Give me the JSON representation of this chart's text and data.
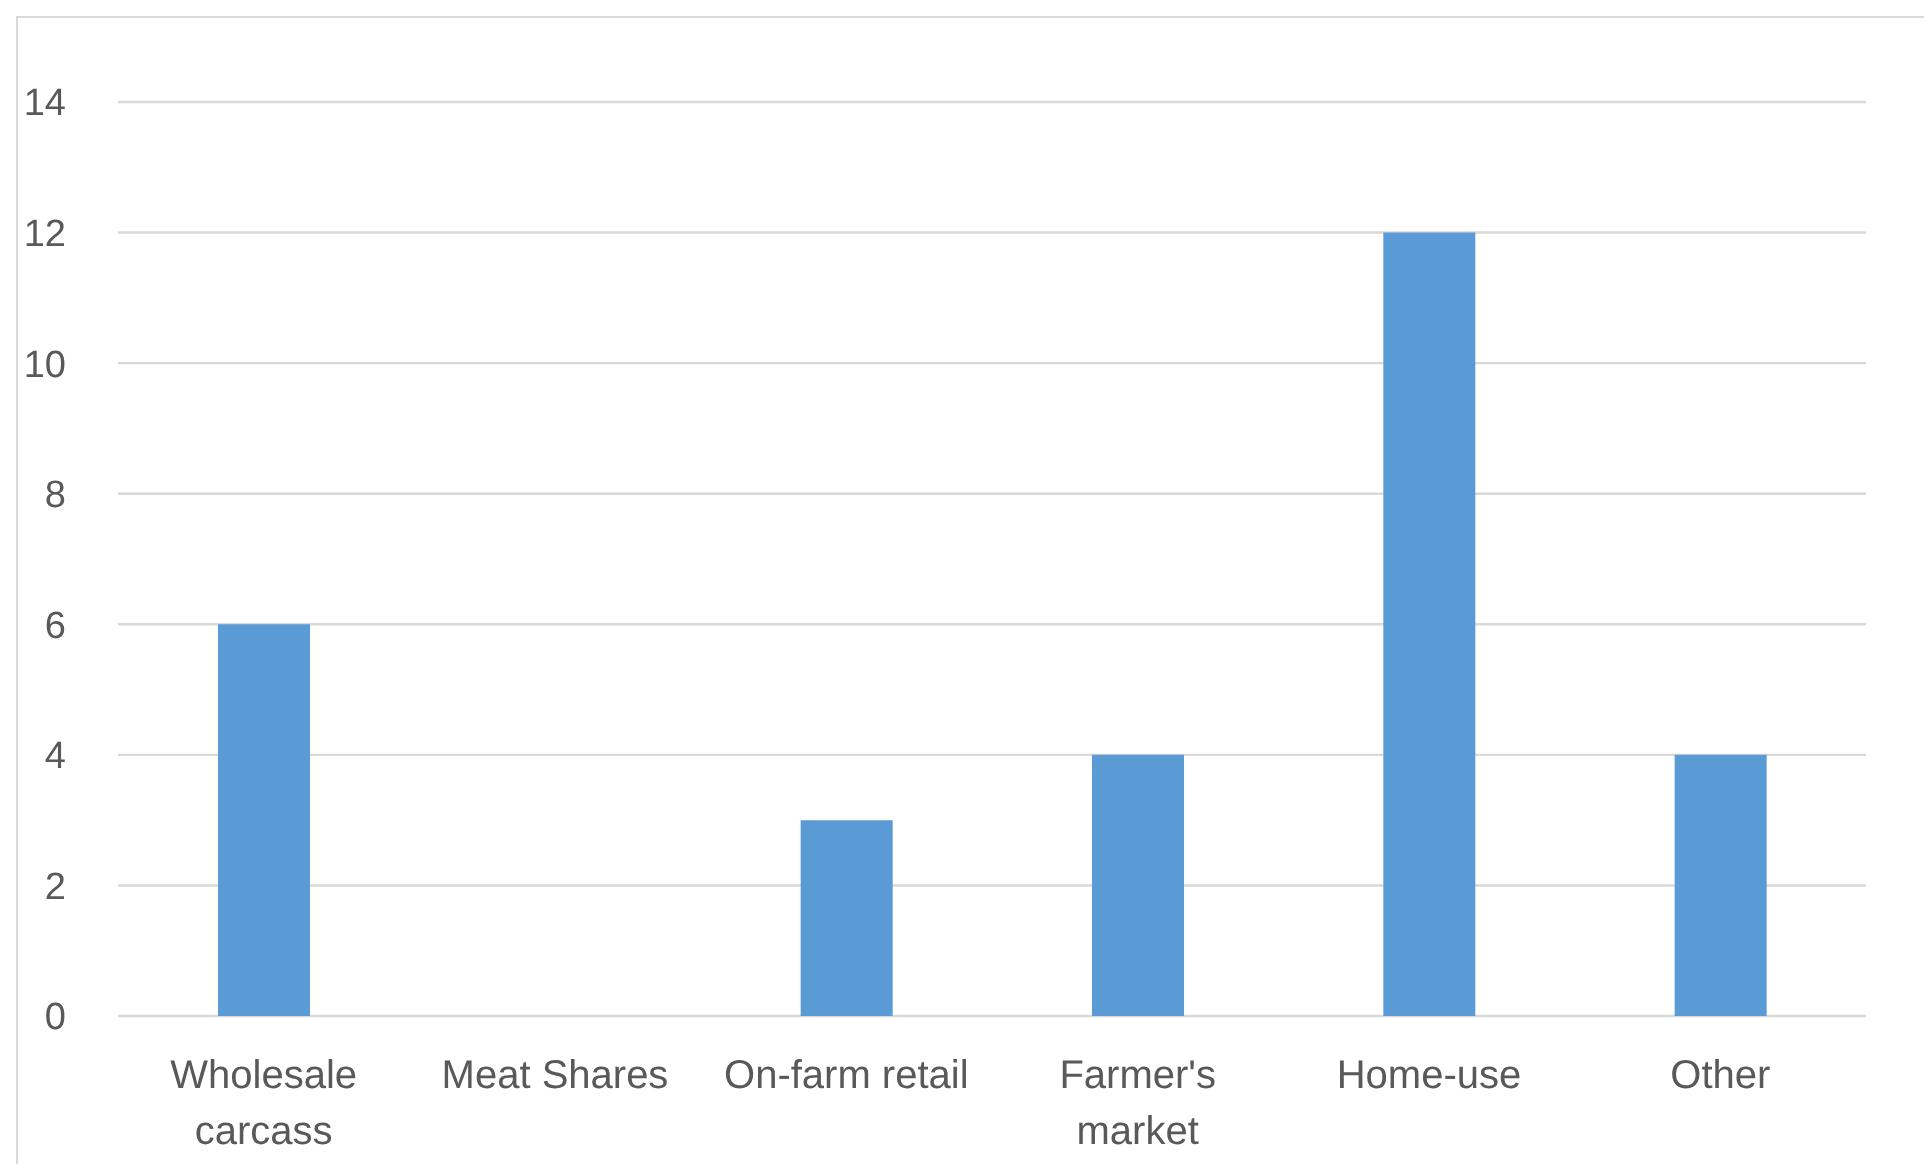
{
  "chart_data": {
    "type": "bar",
    "categories": [
      "Wholesale carcass",
      "Meat Shares",
      "On-farm retail",
      "Farmer's market",
      "Home-use",
      "Other"
    ],
    "values": [
      6,
      0,
      3,
      4,
      12,
      4
    ],
    "color": "#5b9bd5",
    "ylim": [
      0,
      14
    ],
    "yticks": [
      0,
      2,
      4,
      6,
      8,
      10,
      12,
      14
    ],
    "grid": "y"
  }
}
